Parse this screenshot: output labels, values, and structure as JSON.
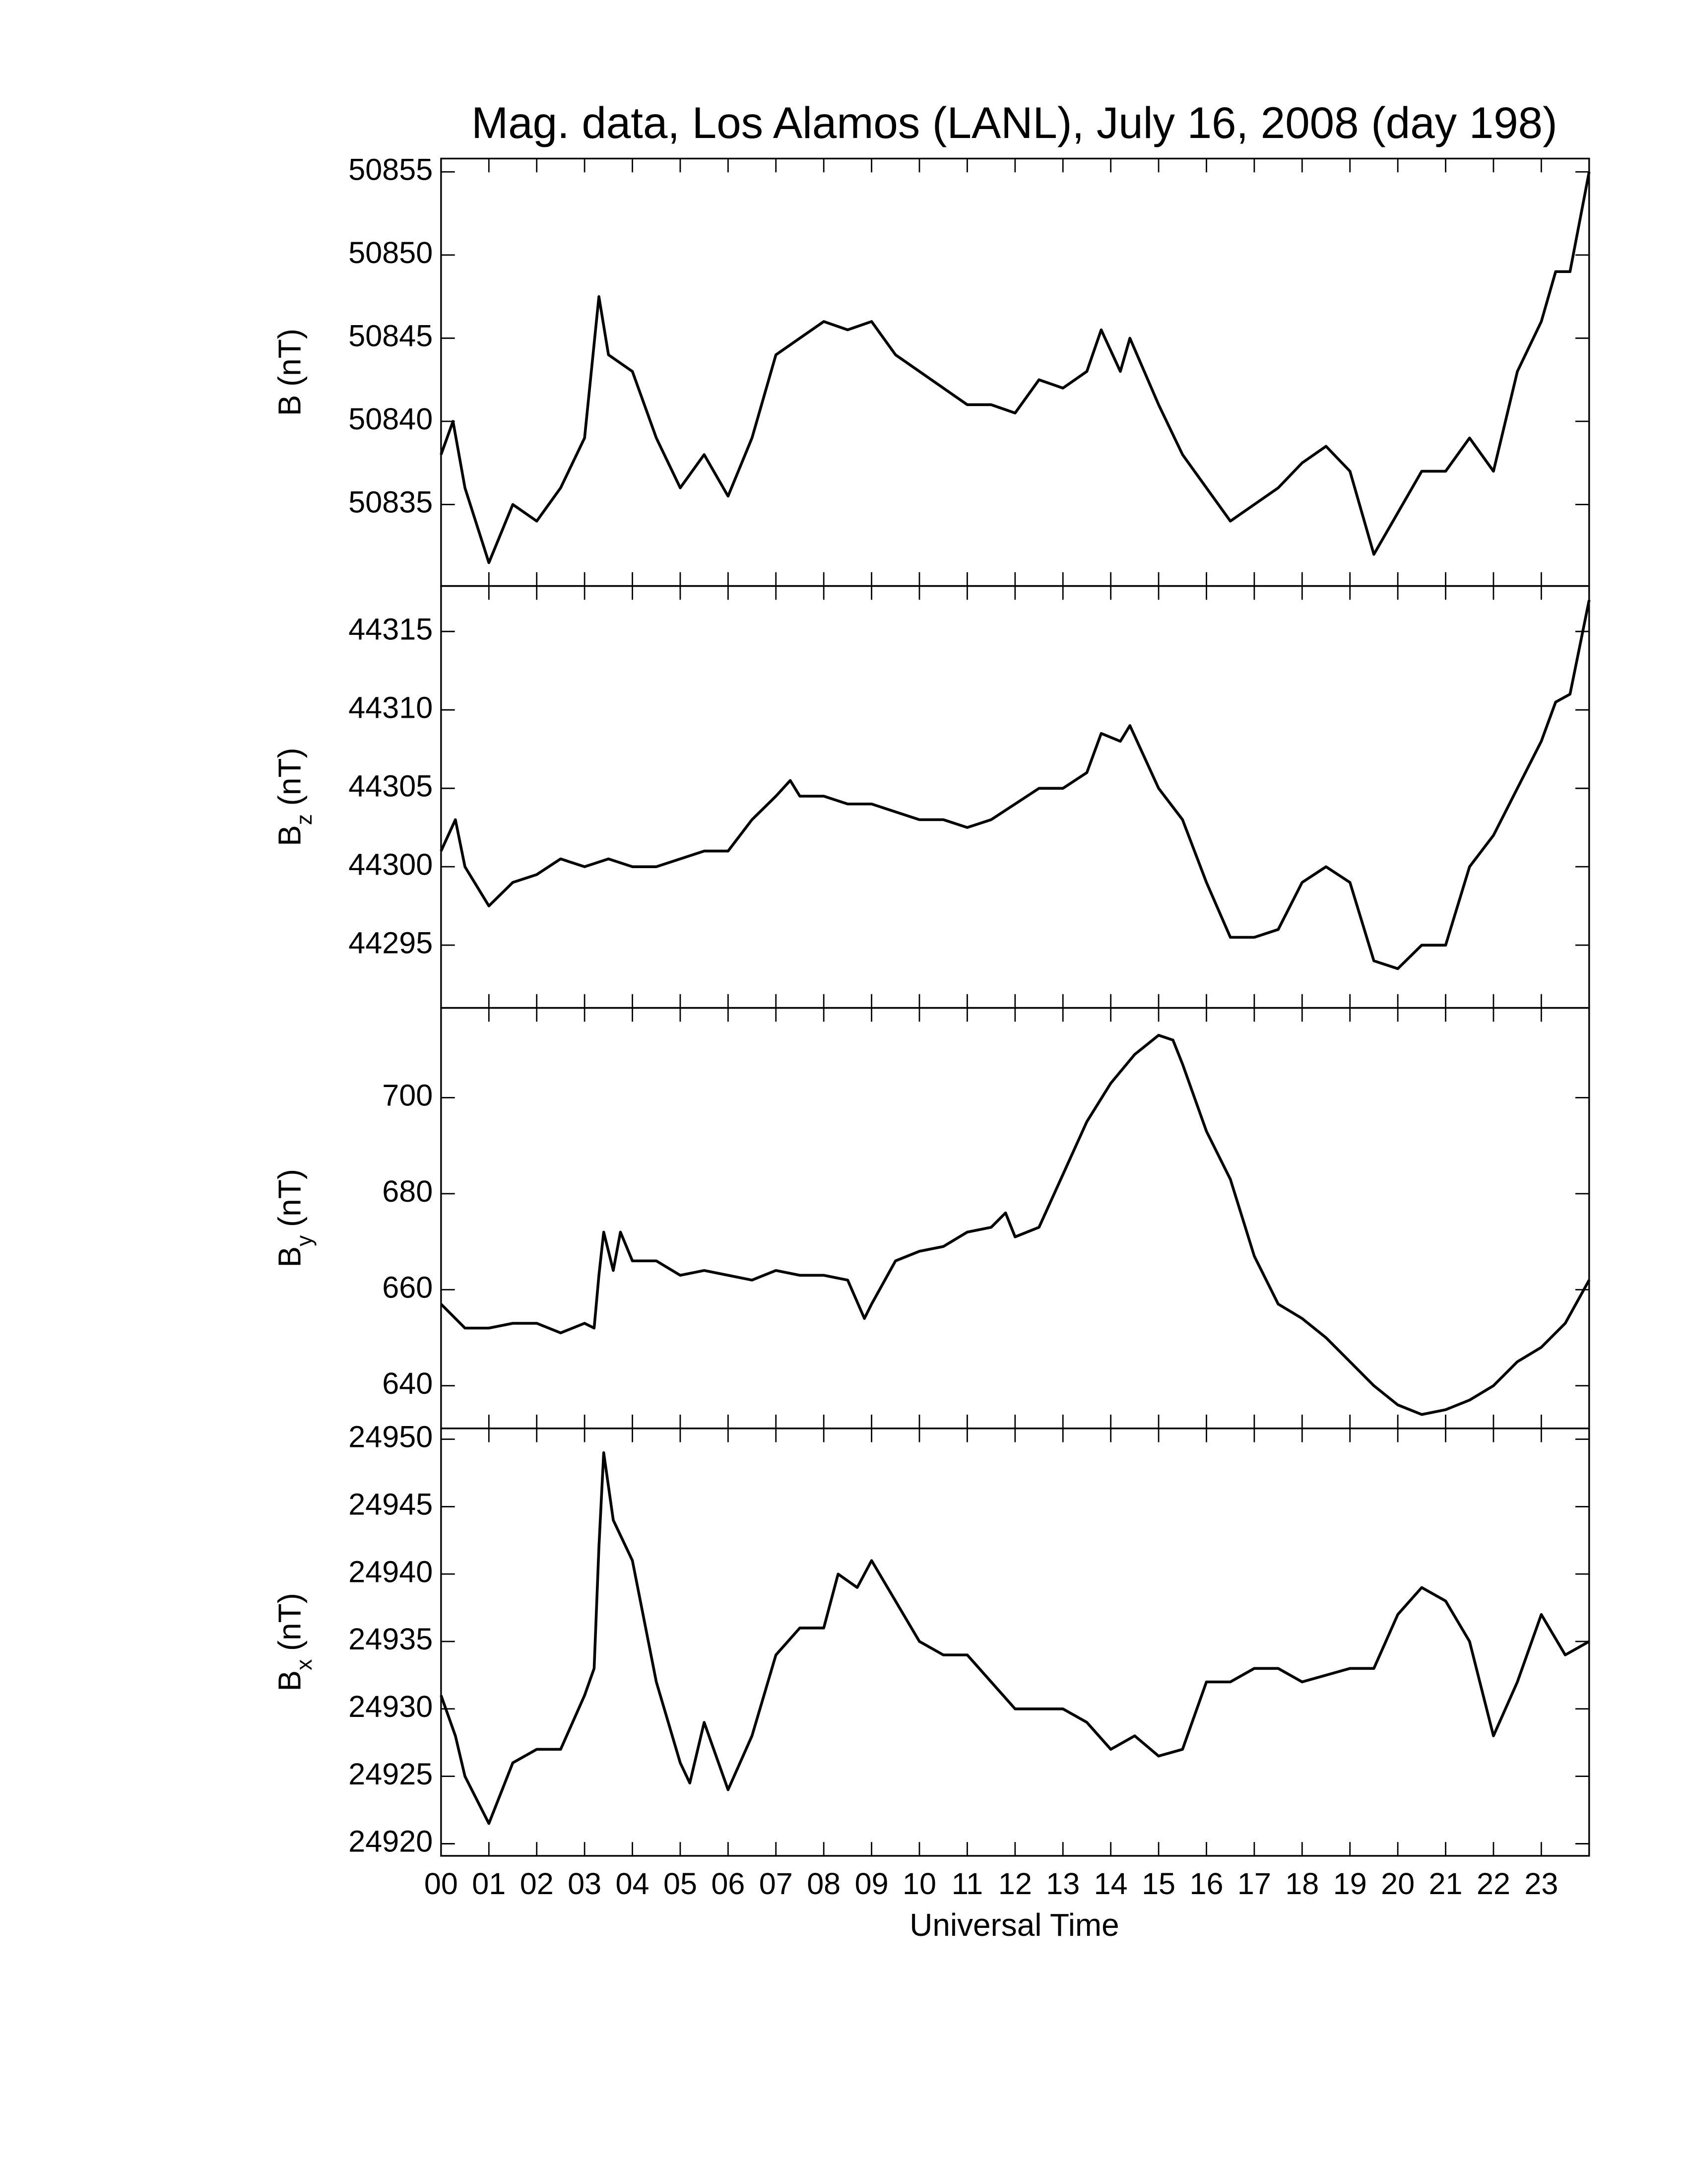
{
  "chart_data": [
    {
      "type": "line",
      "title": "Mag. data, Los Alamos (LANL), July 16, 2008 (day 198)",
      "ylabel": "B",
      "ylabel_unit": "(nT)",
      "color": "#000000",
      "xlim": [
        0,
        24
      ],
      "ylim": [
        50830.1,
        50855.8
      ],
      "yticks": [
        50835,
        50840,
        50845,
        50850,
        50855
      ],
      "x": [
        0,
        0.25,
        0.5,
        1,
        1.5,
        2,
        2.5,
        3,
        3.3,
        3.5,
        4,
        4.5,
        5,
        5.5,
        6,
        6.5,
        7,
        7.5,
        8,
        8.5,
        9,
        9.5,
        10,
        10.5,
        11,
        11.5,
        12,
        12.5,
        13,
        13.5,
        13.8,
        14.2,
        14.4,
        15,
        15.5,
        16,
        16.5,
        17,
        17.5,
        18,
        18.5,
        19,
        19.5,
        20,
        20.5,
        21,
        21.5,
        22,
        22.5,
        23,
        23.3,
        23.6,
        24
      ],
      "values": [
        50838,
        50840,
        50836,
        50831.5,
        50835,
        50834,
        50836,
        50839,
        50847.5,
        50844,
        50843,
        50839,
        50836,
        50838,
        50835.5,
        50839,
        50844,
        50845,
        50846,
        50845.5,
        50846,
        50844,
        50843,
        50842,
        50841,
        50841,
        50840.5,
        50842.5,
        50842,
        50843,
        50845.5,
        50843,
        50845,
        50841,
        50838,
        50836,
        50834,
        50835,
        50836,
        50837.5,
        50838.5,
        50837,
        50832,
        50834.5,
        50837,
        50837,
        50839,
        50837,
        50843,
        50846,
        50849,
        50849,
        50855
      ]
    },
    {
      "type": "line",
      "ylabel": "B",
      "ylabel_subscript": "z",
      "ylabel_unit": "(nT)",
      "color": "#000000",
      "xlim": [
        0,
        24
      ],
      "ylim": [
        44291,
        44317.9
      ],
      "yticks": [
        44295,
        44300,
        44305,
        44310,
        44315
      ],
      "x": [
        0,
        0.3,
        0.5,
        1,
        1.5,
        2,
        2.5,
        3,
        3.5,
        4,
        4.5,
        5,
        5.5,
        6,
        6.5,
        7,
        7.3,
        7.5,
        8,
        8.5,
        9,
        9.5,
        10,
        10.5,
        11,
        11.5,
        12,
        12.5,
        13,
        13.5,
        13.8,
        14.2,
        14.4,
        15,
        15.5,
        16,
        16.5,
        17,
        17.5,
        18,
        18.5,
        19,
        19.5,
        20,
        20.5,
        21,
        21.5,
        22,
        22.5,
        23,
        23.3,
        23.6,
        24
      ],
      "values": [
        44301,
        44303,
        44300,
        44297.5,
        44299,
        44299.5,
        44300.5,
        44300,
        44300.5,
        44300,
        44300,
        44300.5,
        44301,
        44301,
        44303,
        44304.5,
        44305.5,
        44304.5,
        44304.5,
        44304,
        44304,
        44303.5,
        44303,
        44303,
        44302.5,
        44303,
        44304,
        44305,
        44305,
        44306,
        44308.5,
        44308,
        44309,
        44305,
        44303,
        44299,
        44295.5,
        44295.5,
        44296,
        44299,
        44300,
        44299,
        44294,
        44293.5,
        44295,
        44295,
        44300,
        44302,
        44305,
        44308,
        44310.5,
        44311,
        44317
      ]
    },
    {
      "type": "line",
      "ylabel": "B",
      "ylabel_subscript": "y",
      "ylabel_unit": "(nT)",
      "color": "#000000",
      "xlim": [
        0,
        24
      ],
      "ylim": [
        631.1,
        718.7
      ],
      "yticks": [
        640,
        660,
        680,
        700
      ],
      "x": [
        0,
        0.5,
        1,
        1.5,
        2,
        2.5,
        3,
        3.2,
        3.3,
        3.4,
        3.6,
        3.75,
        4,
        4.5,
        5,
        5.5,
        6,
        6.5,
        7,
        7.5,
        8,
        8.5,
        8.85,
        9,
        9.5,
        10,
        10.5,
        11,
        11.5,
        11.8,
        12,
        12.5,
        13,
        13.5,
        14,
        14.5,
        15,
        15.3,
        15.5,
        16,
        16.5,
        17,
        17.5,
        18,
        18.5,
        19,
        19.5,
        20,
        20.5,
        21,
        21.5,
        22,
        22.5,
        23,
        23.5,
        24
      ],
      "values": [
        657,
        652,
        652,
        653,
        653,
        651,
        653,
        652,
        663,
        672,
        664,
        672,
        666,
        666,
        663,
        664,
        663,
        662,
        664,
        663,
        663,
        662,
        654,
        657,
        666,
        668,
        669,
        672,
        673,
        676,
        671,
        673,
        684,
        695,
        703,
        709,
        713,
        712,
        707,
        693,
        683,
        667,
        657,
        654,
        650,
        645,
        640,
        636,
        634,
        635,
        637,
        640,
        645,
        648,
        653,
        662
      ]
    },
    {
      "type": "line",
      "ylabel": "B",
      "ylabel_subscript": "x",
      "ylabel_unit": "(nT)",
      "color": "#000000",
      "xlabel": "Universal Time",
      "xlim": [
        0,
        24
      ],
      "ylim": [
        24919.1,
        24950.8
      ],
      "yticks": [
        24920,
        24925,
        24930,
        24935,
        24940,
        24945,
        24950
      ],
      "xticks": [
        {
          "value": 0,
          "label": "00"
        },
        {
          "value": 1,
          "label": "01"
        },
        {
          "value": 2,
          "label": "02"
        },
        {
          "value": 3,
          "label": "03"
        },
        {
          "value": 4,
          "label": "04"
        },
        {
          "value": 5,
          "label": "05"
        },
        {
          "value": 6,
          "label": "06"
        },
        {
          "value": 7,
          "label": "07"
        },
        {
          "value": 8,
          "label": "08"
        },
        {
          "value": 9,
          "label": "09"
        },
        {
          "value": 10,
          "label": "10"
        },
        {
          "value": 11,
          "label": "11"
        },
        {
          "value": 12,
          "label": "12"
        },
        {
          "value": 13,
          "label": "13"
        },
        {
          "value": 14,
          "label": "14"
        },
        {
          "value": 15,
          "label": "15"
        },
        {
          "value": 16,
          "label": "16"
        },
        {
          "value": 17,
          "label": "17"
        },
        {
          "value": 18,
          "label": "18"
        },
        {
          "value": 19,
          "label": "19"
        },
        {
          "value": 20,
          "label": "20"
        },
        {
          "value": 21,
          "label": "21"
        },
        {
          "value": 22,
          "label": "22"
        },
        {
          "value": 23,
          "label": "23"
        }
      ],
      "x": [
        0,
        0.3,
        0.5,
        1,
        1.5,
        2,
        2.5,
        3,
        3.2,
        3.3,
        3.4,
        3.6,
        4,
        4.5,
        5,
        5.2,
        5.5,
        6,
        6.5,
        7,
        7.5,
        8,
        8.3,
        8.7,
        9,
        9.5,
        10,
        10.5,
        11,
        11.5,
        12,
        12.5,
        13,
        13.5,
        14,
        14.5,
        15,
        15.5,
        16,
        16.5,
        17,
        17.5,
        18,
        18.5,
        19,
        19.5,
        20,
        20.5,
        21,
        21.5,
        22,
        22.5,
        23,
        23.5,
        24
      ],
      "values": [
        24931,
        24928,
        24925,
        24921.5,
        24926,
        24927,
        24927,
        24931,
        24933,
        24942,
        24949,
        24944,
        24941,
        24932,
        24926,
        24924.5,
        24929,
        24924,
        24928,
        24934,
        24936,
        24936,
        24940,
        24939,
        24941,
        24938,
        24935,
        24934,
        24934,
        24932,
        24930,
        24930,
        24930,
        24929,
        24927,
        24928,
        24926.5,
        24927,
        24932,
        24932,
        24933,
        24933,
        24932,
        24932.5,
        24933,
        24933,
        24937,
        24939,
        24938,
        24935,
        24928,
        24932,
        24937,
        24934,
        24935
      ]
    }
  ]
}
